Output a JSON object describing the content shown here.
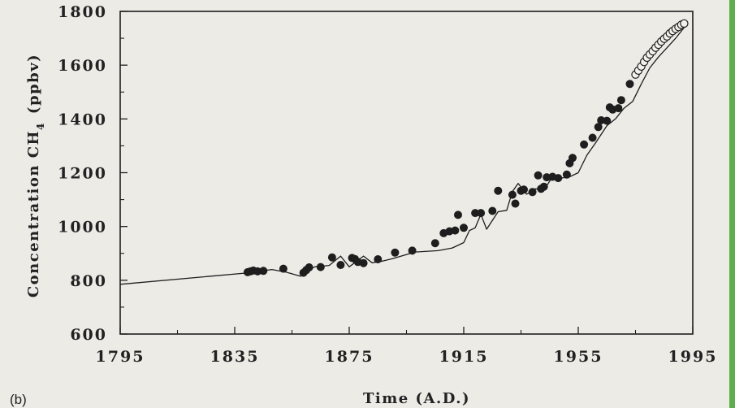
{
  "panel_label": "(b)",
  "colors": {
    "background": "#ecebe6",
    "ink": "#1e1e1e",
    "edge_accent": "#5fae4e"
  },
  "chart_data": {
    "type": "scatter",
    "xlabel": "Time (A.D.)",
    "ylabel_text": "Concentration CH",
    "ylabel_sub": "4",
    "ylabel_unit": "(ppbv)",
    "xlim": [
      1795,
      1995
    ],
    "ylim": [
      600,
      1800
    ],
    "x_ticks": [
      1795,
      1835,
      1875,
      1915,
      1955,
      1995
    ],
    "y_ticks": [
      600,
      800,
      1000,
      1200,
      1400,
      1600,
      1800
    ],
    "line": {
      "x": [
        1795,
        1840,
        1848,
        1853,
        1858,
        1860,
        1863,
        1868,
        1872,
        1875,
        1880,
        1883,
        1886,
        1890,
        1898,
        1906,
        1911,
        1915,
        1917,
        1919,
        1921,
        1923,
        1927,
        1930,
        1932,
        1934,
        1937,
        1940,
        1943,
        1946,
        1949,
        1952,
        1955,
        1958,
        1961,
        1965,
        1968,
        1971,
        1974,
        1977,
        1980,
        1983,
        1986,
        1989,
        1992
      ],
      "y": [
        785,
        828,
        840,
        830,
        815,
        835,
        850,
        855,
        890,
        850,
        890,
        865,
        870,
        880,
        905,
        910,
        920,
        940,
        985,
        995,
        1045,
        990,
        1055,
        1060,
        1130,
        1160,
        1120,
        1140,
        1135,
        1185,
        1180,
        1185,
        1200,
        1265,
        1310,
        1375,
        1400,
        1440,
        1465,
        1530,
        1590,
        1630,
        1665,
        1700,
        1740
      ]
    },
    "series": [
      {
        "name": "",
        "marker": "filled",
        "points": [
          [
            1839.5,
            830
          ],
          [
            1840.5,
            833
          ],
          [
            1841.5,
            836
          ],
          [
            1843,
            833
          ],
          [
            1845,
            835
          ],
          [
            1852,
            843
          ],
          [
            1859,
            828
          ],
          [
            1860,
            838
          ],
          [
            1861,
            848
          ],
          [
            1865,
            849
          ],
          [
            1869,
            885
          ],
          [
            1872,
            857
          ],
          [
            1876,
            883
          ],
          [
            1877,
            879
          ],
          [
            1878,
            868
          ],
          [
            1880,
            864
          ],
          [
            1885,
            878
          ],
          [
            1891,
            903
          ],
          [
            1897,
            910
          ],
          [
            1905,
            938
          ],
          [
            1908,
            975
          ],
          [
            1910,
            982
          ],
          [
            1912,
            985
          ],
          [
            1913,
            1043
          ],
          [
            1915,
            995
          ],
          [
            1919,
            1050
          ],
          [
            1921,
            1050
          ],
          [
            1925,
            1058
          ],
          [
            1927,
            1133
          ],
          [
            1932,
            1118
          ],
          [
            1933,
            1085
          ],
          [
            1935,
            1133
          ],
          [
            1936,
            1137
          ],
          [
            1939,
            1128
          ],
          [
            1941,
            1190
          ],
          [
            1942,
            1140
          ],
          [
            1943,
            1148
          ],
          [
            1944,
            1183
          ],
          [
            1946,
            1185
          ],
          [
            1948,
            1180
          ],
          [
            1951,
            1193
          ],
          [
            1952,
            1235
          ],
          [
            1953,
            1255
          ],
          [
            1957,
            1305
          ],
          [
            1960,
            1330
          ],
          [
            1962,
            1370
          ],
          [
            1963,
            1395
          ],
          [
            1965,
            1393
          ],
          [
            1966,
            1443
          ],
          [
            1967,
            1435
          ],
          [
            1969,
            1440
          ],
          [
            1970,
            1470
          ],
          [
            1973,
            1530
          ]
        ]
      },
      {
        "name": "",
        "marker": "open",
        "points": [
          [
            1975,
            1565
          ],
          [
            1976,
            1580
          ],
          [
            1977,
            1595
          ],
          [
            1978,
            1612
          ],
          [
            1979,
            1628
          ],
          [
            1980,
            1640
          ],
          [
            1981,
            1652
          ],
          [
            1982,
            1665
          ],
          [
            1983,
            1676
          ],
          [
            1984,
            1688
          ],
          [
            1985,
            1698
          ],
          [
            1986,
            1707
          ],
          [
            1987,
            1718
          ],
          [
            1988,
            1727
          ],
          [
            1989,
            1735
          ],
          [
            1990,
            1742
          ],
          [
            1991,
            1750
          ],
          [
            1992,
            1755
          ]
        ]
      }
    ]
  }
}
